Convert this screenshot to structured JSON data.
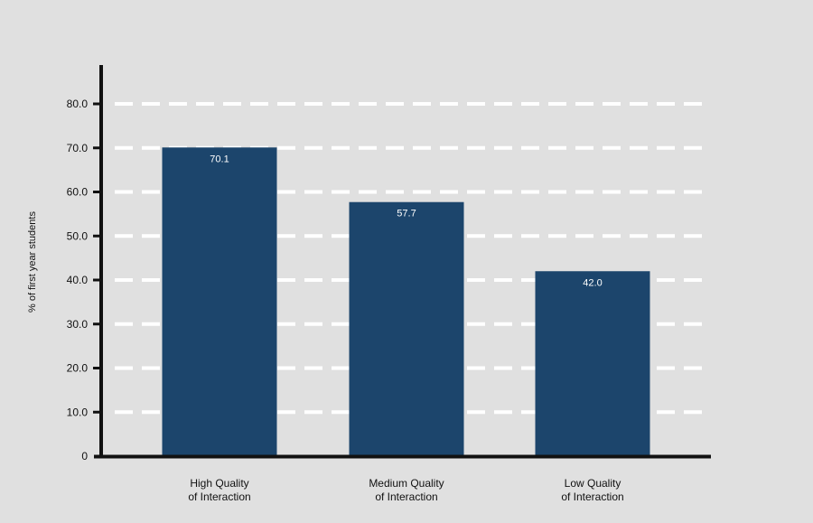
{
  "chart_data": {
    "type": "bar",
    "categories": [
      [
        "High Quality",
        "of Interaction"
      ],
      [
        "Medium Quality",
        "of Interaction"
      ],
      [
        "Low Quality",
        "of Interaction"
      ]
    ],
    "values": [
      70.1,
      57.7,
      42.0
    ],
    "data_labels": [
      "70.1",
      "57.7",
      "42.0"
    ],
    "title": "",
    "xlabel": "",
    "ylabel": "% of first year students",
    "ylim": [
      0,
      80
    ],
    "yticks": [
      0,
      10,
      20,
      30,
      40,
      50,
      60,
      70,
      80
    ],
    "ytick_labels": [
      "0",
      "10.0",
      "20.0",
      "30.0",
      "40.0",
      "50.0",
      "60.0",
      "70.0",
      "80.0"
    ],
    "grid": true,
    "grid_style": "dashed",
    "legend": "none",
    "colors": {
      "bar": "#1c456c",
      "grid": "#ffffff",
      "axis": "#111111",
      "background": "#e0e0e0"
    }
  }
}
